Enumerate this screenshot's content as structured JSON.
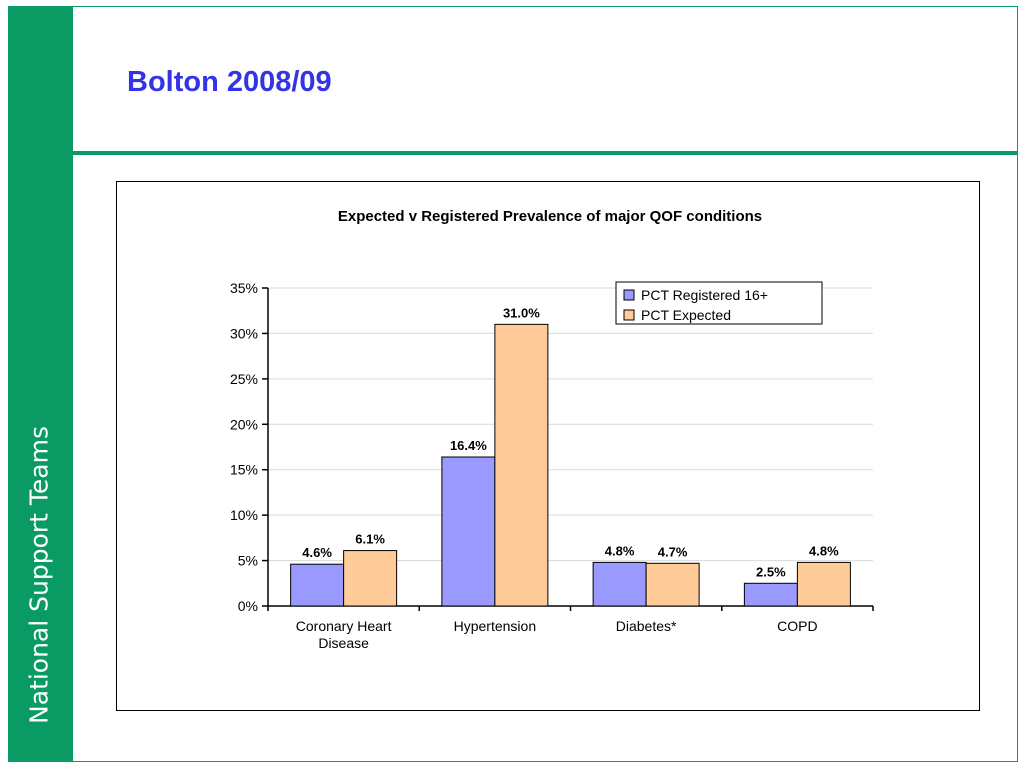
{
  "sidebar": {
    "label": "National Support Teams"
  },
  "slide": {
    "title": "Bolton 2008/09"
  },
  "colors": {
    "brand_green": "#0a9a63",
    "title_blue": "#3333e8",
    "registered": "#9999ff",
    "expected": "#ffcc99"
  },
  "chart_data": {
    "type": "bar",
    "title": "Expected v Registered Prevalence of major QOF conditions",
    "xlabel": "",
    "ylabel": "",
    "categories": [
      [
        "Coronary Heart",
        "Disease"
      ],
      [
        "Hypertension"
      ],
      [
        "Diabetes*"
      ],
      [
        "COPD"
      ]
    ],
    "series": [
      {
        "name": "PCT Registered 16+",
        "values": [
          4.6,
          16.4,
          4.8,
          2.5
        ],
        "labels": [
          "4.6%",
          "16.4%",
          "4.8%",
          "2.5%"
        ],
        "color": "#9999ff"
      },
      {
        "name": "PCT Expected",
        "values": [
          6.1,
          31.0,
          4.7,
          4.8
        ],
        "labels": [
          "6.1%",
          "31.0%",
          "4.7%",
          "4.8%"
        ],
        "color": "#ffcc99"
      }
    ],
    "ylim": [
      0,
      35
    ],
    "yticks": [
      0,
      5,
      10,
      15,
      20,
      25,
      30,
      35
    ],
    "ytick_labels": [
      "0%",
      "5%",
      "10%",
      "15%",
      "20%",
      "25%",
      "30%",
      "35%"
    ],
    "grid": true,
    "legend": "top-right"
  }
}
